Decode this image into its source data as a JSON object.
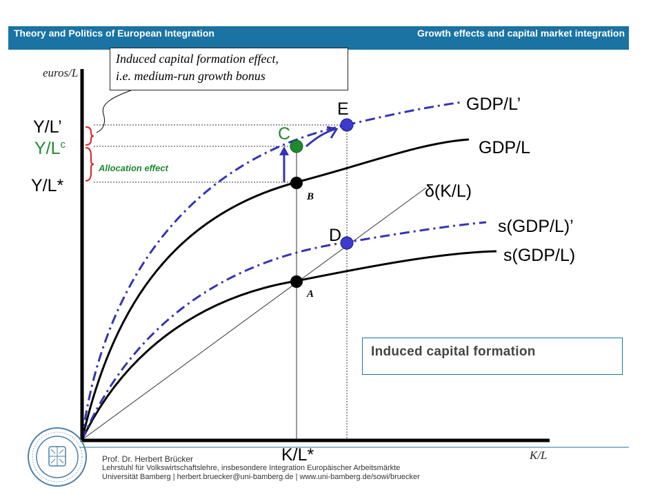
{
  "header": {
    "left_title": "Theory and Politics of European Integration",
    "right_title": "Growth effects and capital market integration"
  },
  "callout": {
    "line1": "Induced capital formation effect,",
    "line2": "i.e. medium-run growth bonus"
  },
  "axes": {
    "y_label": "euros/L",
    "x_label": "K/L",
    "x_marker": "K/L*"
  },
  "y_markers": {
    "y_prime": "Y/L’",
    "y_c": "Y/L",
    "y_c_sup": "c",
    "y_star": "Y/L*"
  },
  "points": {
    "E": "E",
    "C": "C",
    "B": "B",
    "D": "D",
    "A": "A"
  },
  "curves": {
    "gdp_prime": "GDP/L’",
    "gdp": "GDP/L",
    "delta": "δ(K/L)",
    "s_prime": "s(GDP/L)’",
    "s": "s(GDP/L)"
  },
  "annotations": {
    "allocation_effect": "Allocation effect"
  },
  "box": {
    "text": "Induced capital formation"
  },
  "footer": {
    "line1": "Prof. Dr. Herbert Brücker",
    "line2": "Lehrstuhl für Volkswirtschaftslehre, insbesondere Integration Europäischer Arbeitsmärkte",
    "line3": "Universität Bamberg | herbert.bruecker@uni-bamberg.de | www.uni-bamberg.de/sowi/bruecker"
  },
  "colors": {
    "header_bg": "#1a73a3",
    "dashed_curve": "#3333b5",
    "point_blue": "#3b3bd0",
    "point_green": "#1e8a2e",
    "green_text": "#1e8a2e",
    "brace_red": "#e02020"
  }
}
